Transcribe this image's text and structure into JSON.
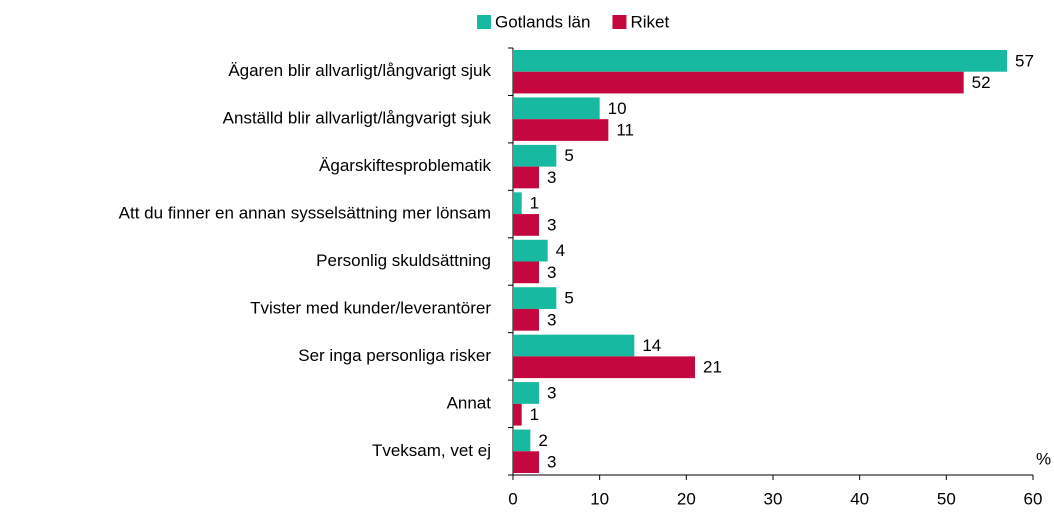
{
  "chart_data": {
    "type": "bar",
    "orientation": "horizontal",
    "categories": [
      "Ägaren blir allvarligt/långvarigt sjuk",
      "Anställd blir allvarligt/långvarigt sjuk",
      "Ägarskiftesproblematik",
      "Att du finner en annan sysselsättning mer lönsam",
      "Personlig skuldsättning",
      "Tvister med kunder/leverantörer",
      "Ser inga personliga risker",
      "Annat",
      "Tveksam, vet ej"
    ],
    "series": [
      {
        "name": "Gotlands län",
        "color": "#17b9a0",
        "values": [
          57,
          10,
          5,
          1,
          4,
          5,
          14,
          3,
          2
        ]
      },
      {
        "name": "Riket",
        "color": "#c5073f",
        "values": [
          52,
          11,
          3,
          3,
          3,
          3,
          21,
          1,
          3
        ]
      }
    ],
    "xlim": [
      0,
      60
    ],
    "xticks": [
      0,
      10,
      20,
      30,
      40,
      50,
      60
    ],
    "x_unit": "%",
    "legend": "top"
  }
}
